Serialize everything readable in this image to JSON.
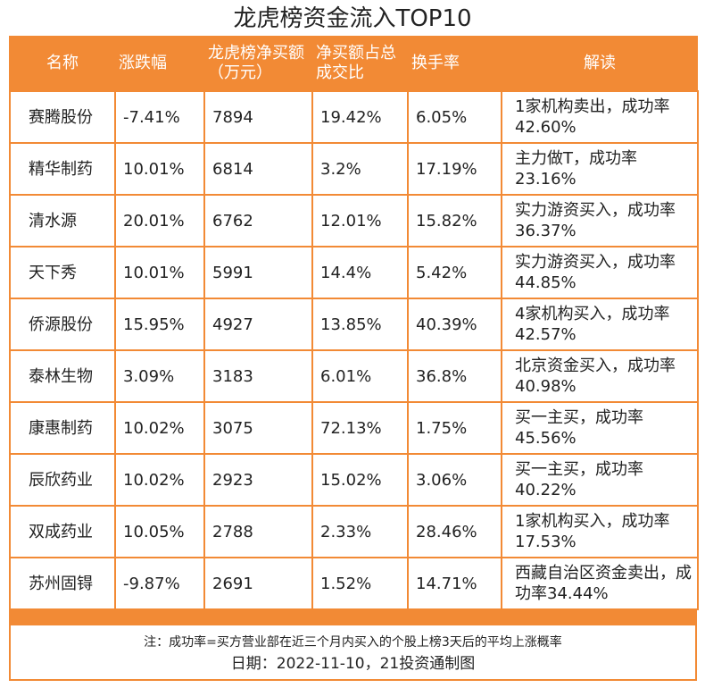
{
  "title": "龙虎榜资金流入TOP10",
  "headers": [
    "名称",
    "涨跌幅",
    "龙虎榜净买额（万元）",
    "净买额占总成交比",
    "换手率",
    "解读"
  ],
  "rows": [
    [
      "赛腾股份",
      "-7.41%",
      "7894",
      "19.42%",
      "6.05%",
      "1家机构卖出，成功率42.60%"
    ],
    [
      "精华制药",
      "10.01%",
      "6814",
      "3.2%",
      "17.19%",
      "主力做T，成功率23.16%"
    ],
    [
      "清水源",
      "20.01%",
      "6762",
      "12.01%",
      "15.82%",
      "实力游资买入，成功率36.37%"
    ],
    [
      "天下秀",
      "10.01%",
      "5991",
      "14.4%",
      "5.42%",
      "实力游资买入，成功率44.85%"
    ],
    [
      "侨源股份",
      "15.95%",
      "4927",
      "13.85%",
      "40.39%",
      "4家机构买入，成功率42.57%"
    ],
    [
      "泰林生物",
      "3.09%",
      "3183",
      "6.01%",
      "36.8%",
      "北京资金买入，成功率40.98%"
    ],
    [
      "康惠制药",
      "10.02%",
      "3075",
      "72.13%",
      "1.75%",
      "买一主买，成功率45.56%"
    ],
    [
      "辰欣药业",
      "10.02%",
      "2923",
      "15.02%",
      "3.06%",
      "买一主买，成功率40.22%"
    ],
    [
      "双成药业",
      "10.05%",
      "2788",
      "2.33%",
      "28.46%",
      "1家机构买入，成功率17.53%"
    ],
    [
      "苏州固锝",
      "-9.87%",
      "2691",
      "1.52%",
      "14.71%",
      "西藏自治区资金卖出，成功率34.44%"
    ]
  ],
  "note": "注：成功率=买方营业部在近三个月内买入的个股上榜3天后的平均上涨概率",
  "date_line": "日期：2022-11-10，21投资通制图",
  "colors": {
    "accent": "#f28a35"
  }
}
